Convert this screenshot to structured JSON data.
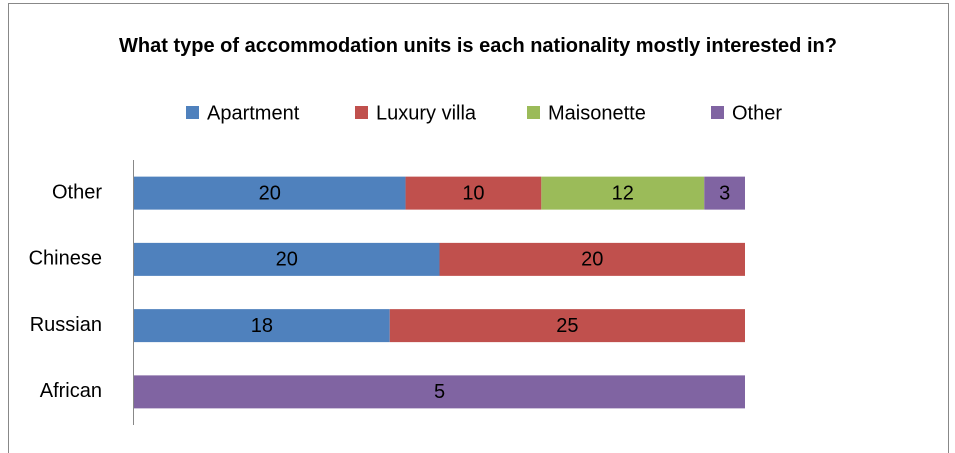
{
  "chart_data": {
    "type": "bar",
    "orientation": "horizontal",
    "stacking": "percent",
    "title": "What type of accommodation units is each nationality mostly interested in?",
    "categories": [
      "African",
      "Russian",
      "Chinese",
      "Other"
    ],
    "series": [
      {
        "name": "Apartment",
        "color": "#4f81bd",
        "values": [
          0,
          18,
          20,
          20
        ]
      },
      {
        "name": "Luxury villa",
        "color": "#c0504d",
        "values": [
          0,
          25,
          20,
          10
        ]
      },
      {
        "name": "Maisonette",
        "color": "#9bbb59",
        "values": [
          0,
          0,
          0,
          12
        ]
      },
      {
        "name": "Other",
        "color": "#8064a2",
        "values": [
          5,
          0,
          0,
          3
        ]
      }
    ],
    "legend": "top"
  }
}
